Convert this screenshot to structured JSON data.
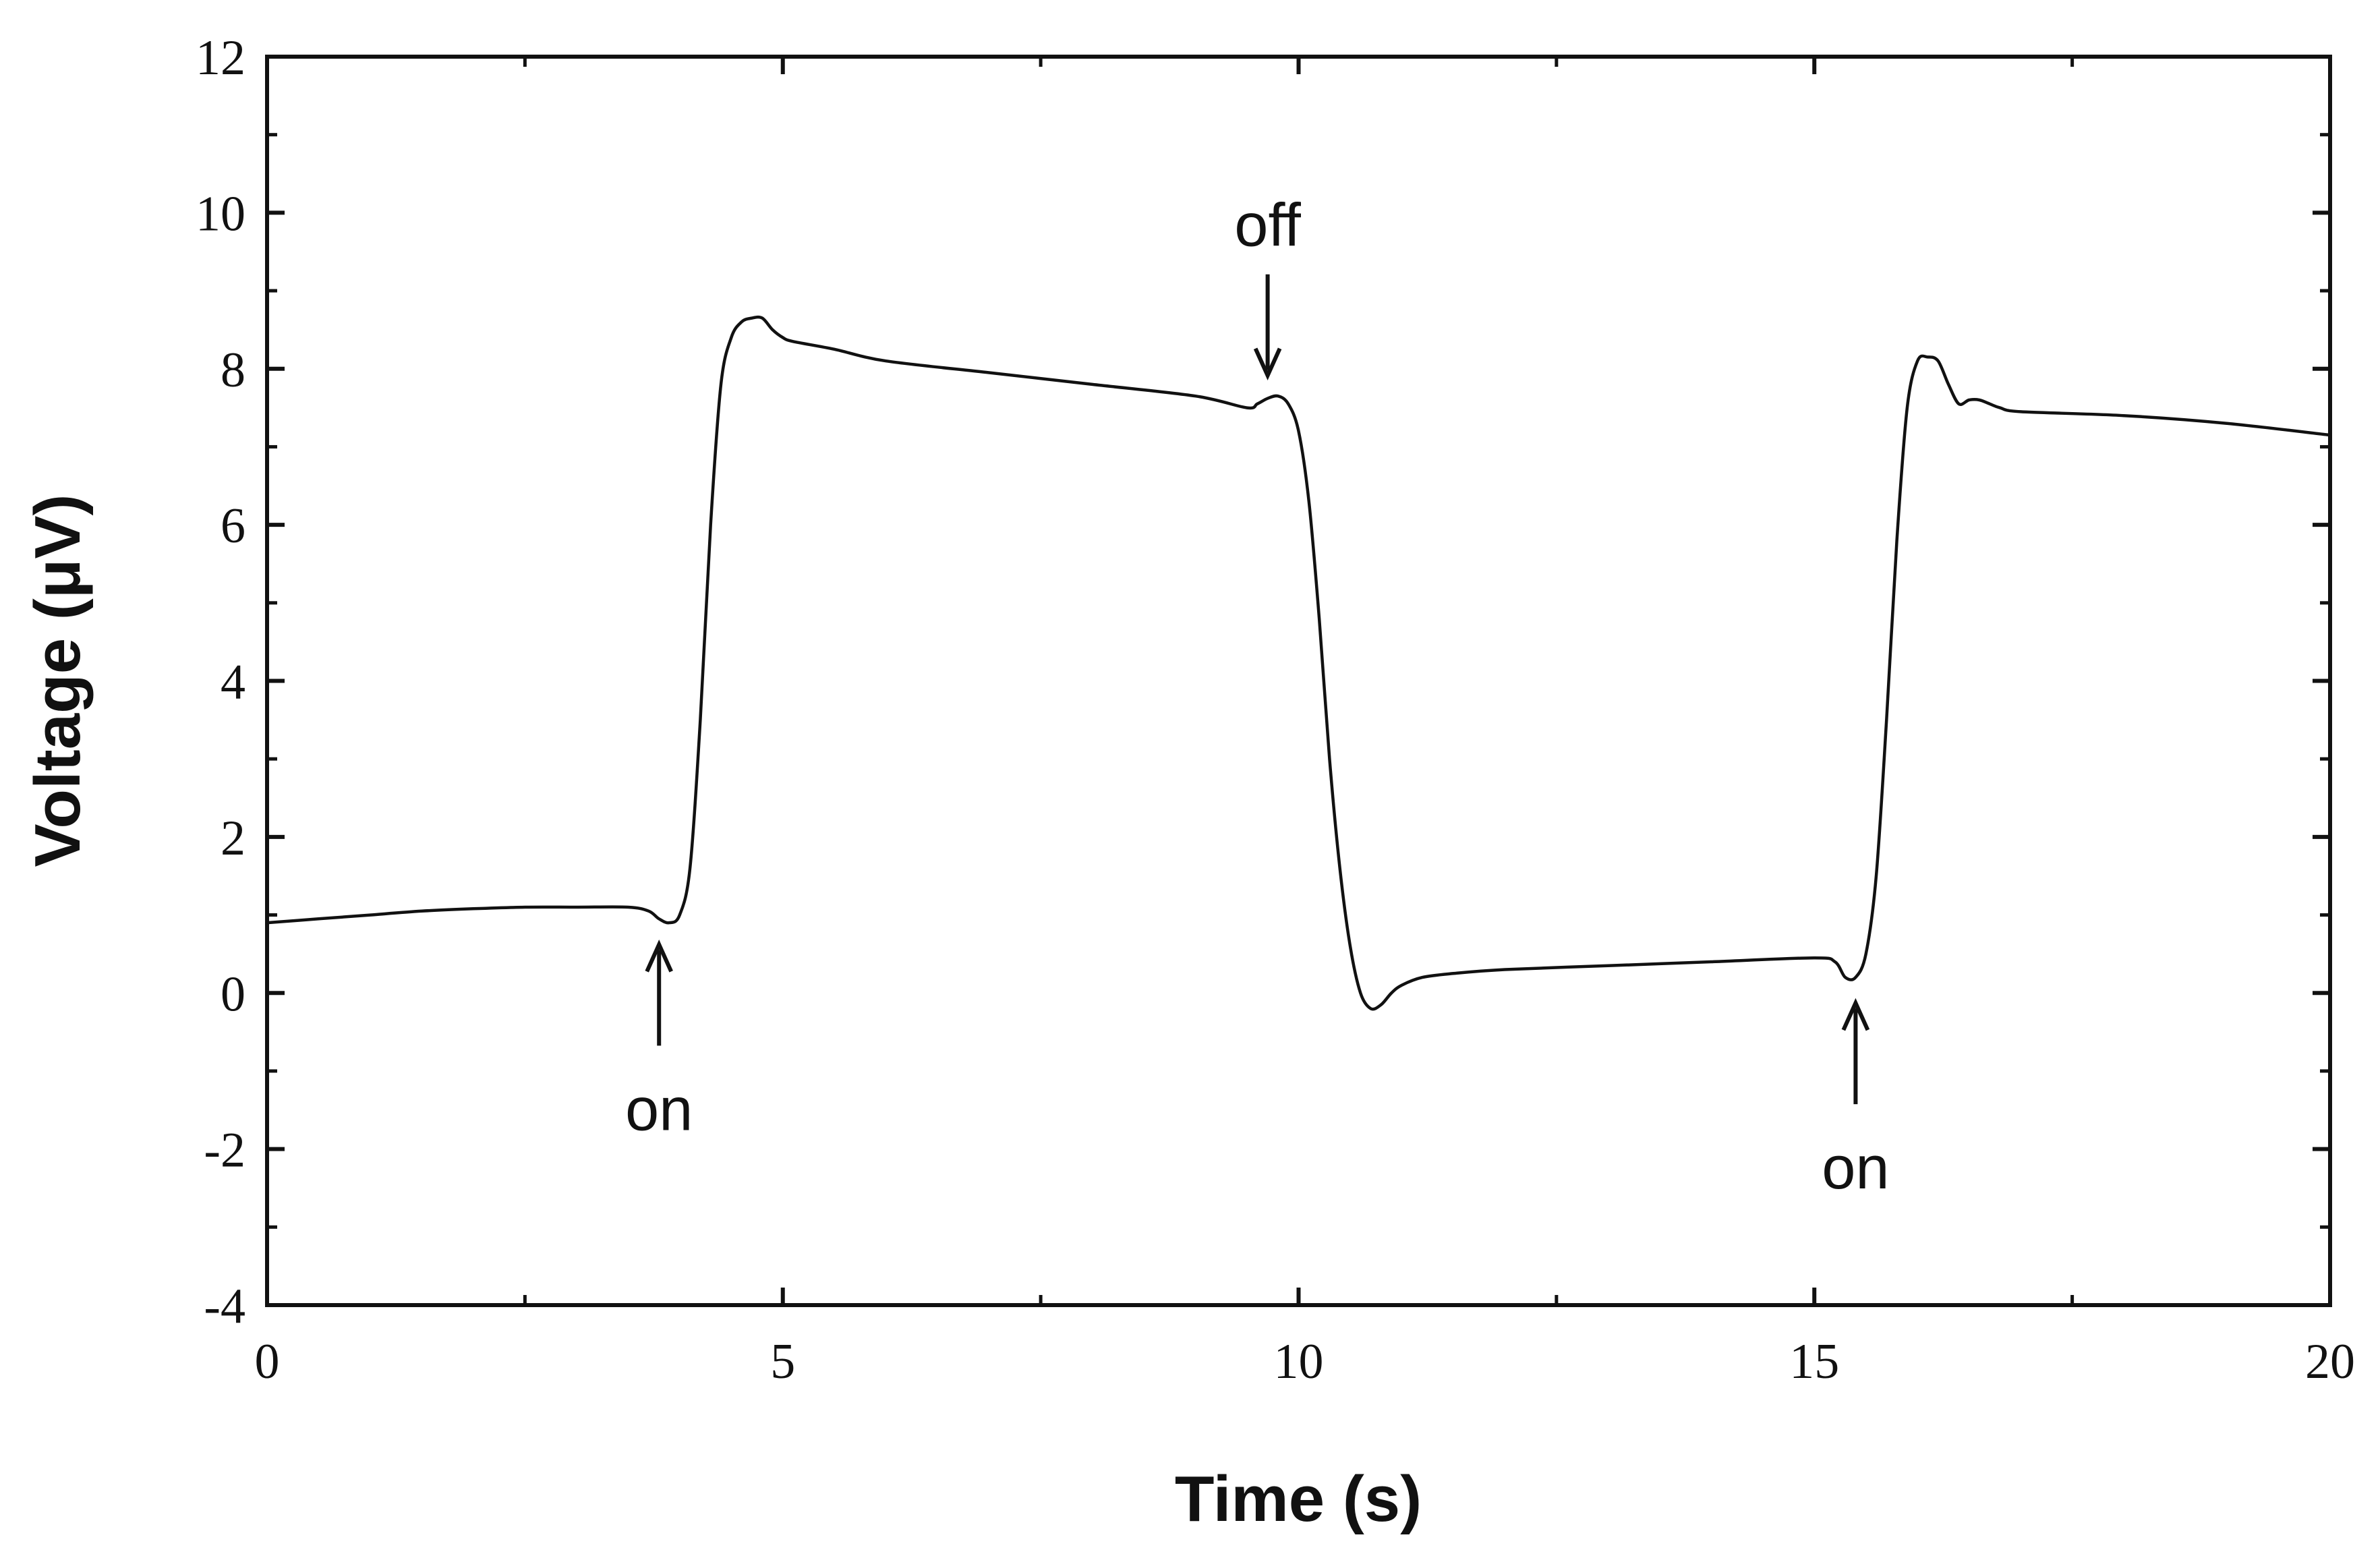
{
  "chart_data": {
    "type": "line",
    "title": "",
    "xlabel": "Time (s)",
    "ylabel": "Voltage (μV)",
    "xlim": [
      0,
      20
    ],
    "ylim": [
      -4,
      12
    ],
    "xticks": [
      0,
      5,
      10,
      15,
      20
    ],
    "yticks": [
      -4,
      -2,
      0,
      2,
      4,
      6,
      8,
      10,
      12
    ],
    "grid": false,
    "series": [
      {
        "x": [
          0,
          0.5,
          1.0,
          1.5,
          2.0,
          2.5,
          3.0,
          3.5,
          3.7,
          3.8,
          3.9,
          4.0,
          4.1,
          4.2,
          4.3,
          4.4,
          4.5,
          4.6,
          4.7,
          4.8,
          4.9,
          5.0,
          5.1,
          5.5,
          6.0,
          7.0,
          8.0,
          9.0,
          9.5,
          9.6,
          9.7,
          9.8,
          9.9,
          10.0,
          10.1,
          10.2,
          10.3,
          10.4,
          10.5,
          10.6,
          10.7,
          10.8,
          10.9,
          11.0,
          11.2,
          11.5,
          12.0,
          13.0,
          14.0,
          15.0,
          15.2,
          15.3,
          15.4,
          15.5,
          15.6,
          15.7,
          15.8,
          15.9,
          16.0,
          16.1,
          16.2,
          16.3,
          16.4,
          16.5,
          16.6,
          16.7,
          16.8,
          17.0,
          18.0,
          19.0,
          20.0
        ],
        "y": [
          0.9,
          0.95,
          1.0,
          1.05,
          1.08,
          1.1,
          1.1,
          1.1,
          1.05,
          0.95,
          0.9,
          1.0,
          1.6,
          3.5,
          6.0,
          7.8,
          8.4,
          8.6,
          8.65,
          8.65,
          8.5,
          8.4,
          8.35,
          8.25,
          8.1,
          7.95,
          7.8,
          7.65,
          7.5,
          7.55,
          7.62,
          7.65,
          7.55,
          7.2,
          6.3,
          4.8,
          3.0,
          1.6,
          0.6,
          0.0,
          -0.2,
          -0.15,
          0.0,
          0.1,
          0.2,
          0.25,
          0.3,
          0.35,
          0.4,
          0.45,
          0.4,
          0.2,
          0.2,
          0.5,
          1.5,
          3.5,
          5.8,
          7.5,
          8.1,
          8.15,
          8.1,
          7.8,
          7.55,
          7.6,
          7.6,
          7.55,
          7.5,
          7.45,
          7.4,
          7.3,
          7.15
        ]
      }
    ],
    "annotations": [
      {
        "text": "on",
        "x": 3.8,
        "direction": "up"
      },
      {
        "text": "off",
        "x": 9.7,
        "direction": "down"
      },
      {
        "text": "on",
        "x": 15.4,
        "direction": "up"
      }
    ]
  }
}
